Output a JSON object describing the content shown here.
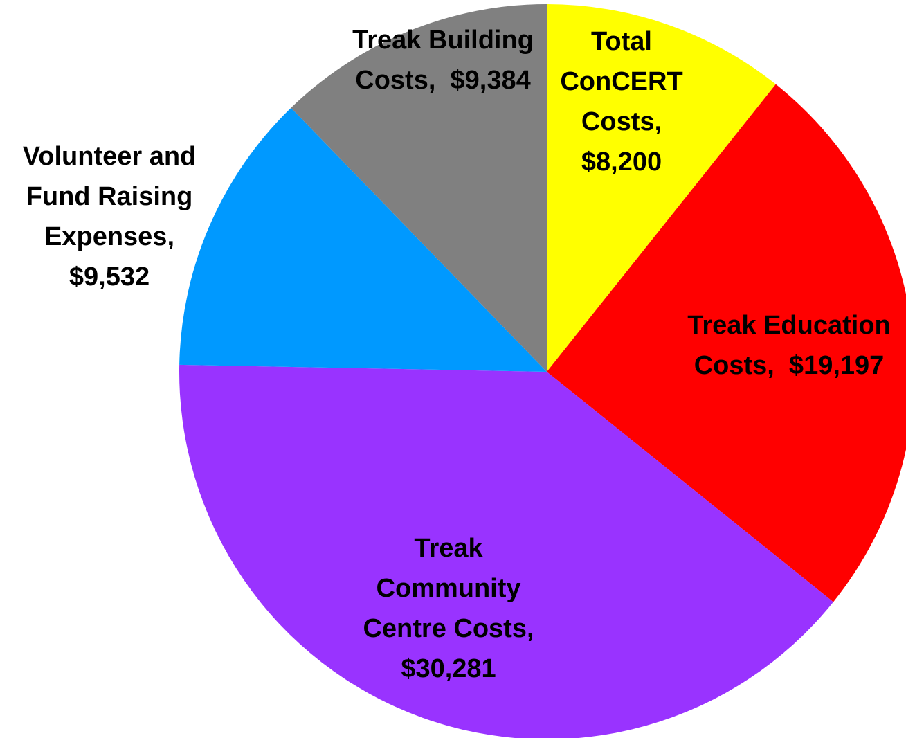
{
  "chart_data": {
    "type": "pie",
    "title": "",
    "start_angle_deg": 0,
    "direction": "clockwise",
    "slices": [
      {
        "label_lines": [
          "Total",
          "ConCERT",
          "Costs,",
          "$8,200"
        ],
        "category": "Total ConCERT Costs",
        "value": 8200,
        "value_label": "$8,200",
        "color": "#FFFF00"
      },
      {
        "label_lines": [
          "Treak Education",
          "Costs,  $19,197"
        ],
        "category": "Treak Education Costs",
        "value": 19197,
        "value_label": "$19,197",
        "color": "#FF0000"
      },
      {
        "label_lines": [
          "Treak",
          "Community",
          "Centre Costs,",
          "$30,281"
        ],
        "category": "Treak Community Centre Costs",
        "value": 30281,
        "value_label": "$30,281",
        "color": "#9933FF"
      },
      {
        "label_lines": [
          "Volunteer and",
          "Fund Raising",
          "Expenses,",
          "$9,532"
        ],
        "category": "Volunteer and Fund Raising Expenses",
        "value": 9532,
        "value_label": "$9,532",
        "color": "#0099FF"
      },
      {
        "label_lines": [
          "Treak Building",
          "Costs,  $9,384"
        ],
        "category": "Treak Building Costs",
        "value": 9384,
        "value_label": "$9,384",
        "color": "#808080"
      }
    ]
  }
}
